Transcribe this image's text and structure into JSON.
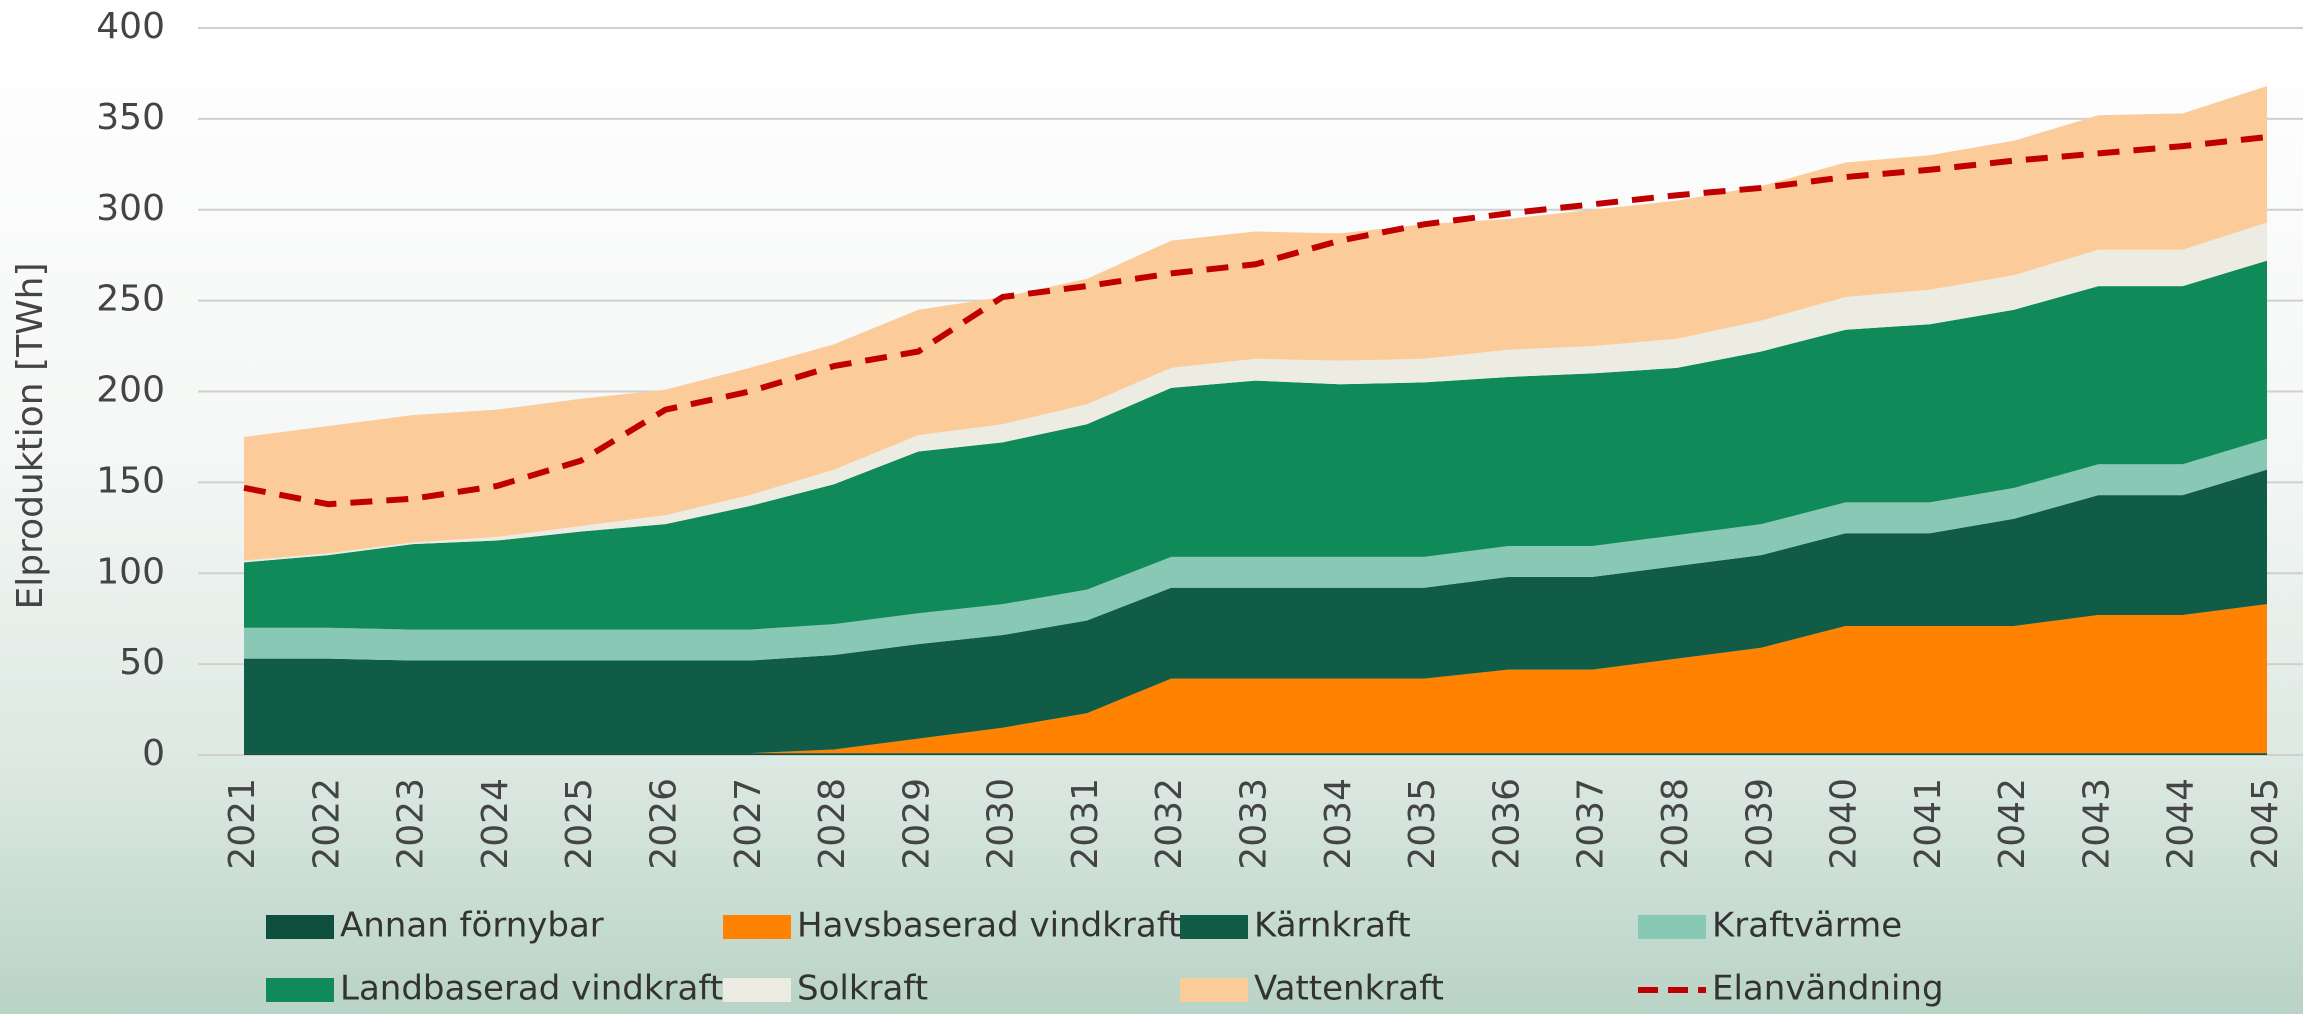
{
  "chart_data": {
    "type": "stacked-area",
    "y_label": "Elproduktion [TWh]",
    "categories": [
      "2021",
      "2022",
      "2023",
      "2024",
      "2025",
      "2026",
      "2027",
      "2028",
      "2029",
      "2030",
      "2031",
      "2032",
      "2033",
      "2034",
      "2035",
      "2036",
      "2037",
      "2038",
      "2039",
      "2040",
      "2041",
      "2042",
      "2043",
      "2044",
      "2045"
    ],
    "ylim": [
      0,
      400
    ],
    "yticks": [
      0,
      50,
      100,
      150,
      200,
      250,
      300,
      350,
      400
    ],
    "grid": true,
    "series": [
      {
        "name": "Annan förnybar",
        "color": "#0e4f3d",
        "values": [
          1,
          1,
          1,
          1,
          1,
          1,
          1,
          1,
          1,
          1,
          1,
          1,
          1,
          1,
          1,
          1,
          1,
          1,
          1,
          1,
          1,
          1,
          1,
          1,
          1
        ]
      },
      {
        "name": "Havsbaserad vindkraft",
        "color": "#ff8200",
        "values": [
          0,
          0,
          0,
          0,
          0,
          0,
          0,
          2,
          8,
          14,
          22,
          41,
          41,
          41,
          41,
          46,
          46,
          52,
          58,
          70,
          70,
          70,
          76,
          76,
          82
        ]
      },
      {
        "name": "Kärnkraft",
        "color": "#115c47",
        "values": [
          52,
          52,
          51,
          51,
          51,
          51,
          51,
          52,
          52,
          51,
          51,
          50,
          50,
          50,
          50,
          51,
          51,
          51,
          51,
          51,
          51,
          59,
          66,
          66,
          74
        ]
      },
      {
        "name": "Kraftvärme",
        "color": "#88c8b5",
        "values": [
          17,
          17,
          17,
          17,
          17,
          17,
          17,
          17,
          17,
          17,
          17,
          17,
          17,
          17,
          17,
          17,
          17,
          17,
          17,
          17,
          17,
          17,
          17,
          17,
          17
        ]
      },
      {
        "name": "Landbaserad vindkraft",
        "color": "#0f8a58",
        "values": [
          36,
          40,
          47,
          49,
          54,
          58,
          68,
          77,
          89,
          89,
          91,
          93,
          97,
          95,
          96,
          93,
          95,
          92,
          95,
          95,
          98,
          98,
          98,
          98,
          98
        ]
      },
      {
        "name": "Solkraft",
        "color": "#ecece3",
        "values": [
          1,
          1,
          1,
          2,
          3,
          5,
          6,
          8,
          9,
          10,
          11,
          11,
          12,
          13,
          13,
          15,
          15,
          16,
          17,
          18,
          19,
          19,
          20,
          20,
          21
        ]
      },
      {
        "name": "Vattenkraft",
        "color": "#fccb9a",
        "values": [
          68,
          70,
          70,
          70,
          70,
          69,
          70,
          69,
          69,
          70,
          69,
          70,
          70,
          70,
          74,
          72,
          75,
          76,
          74,
          74,
          74,
          74,
          74,
          75,
          75
        ]
      },
      {
        "name": "Elanvändning",
        "type": "line",
        "dashed": true,
        "color": "#c00000",
        "values": [
          147,
          138,
          141,
          148,
          162,
          190,
          200,
          214,
          222,
          252,
          258,
          265,
          270,
          283,
          292,
          298,
          303,
          308,
          312,
          318,
          322,
          327,
          331,
          335,
          340
        ]
      }
    ]
  }
}
